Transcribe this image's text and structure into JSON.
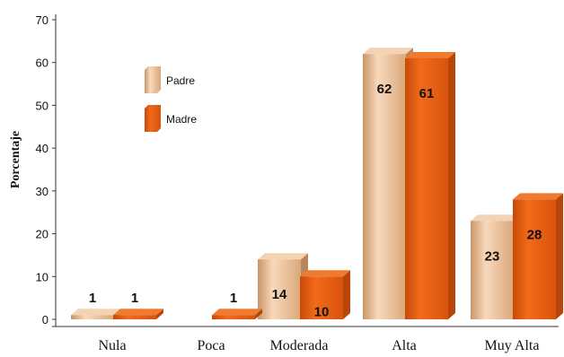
{
  "chart_data": {
    "type": "bar",
    "title": "",
    "xlabel": "",
    "ylabel": "Porcentaje",
    "ylim": [
      0,
      70
    ],
    "yticks": [
      0,
      10,
      20,
      30,
      40,
      50,
      60,
      70
    ],
    "categories": [
      "Nula",
      "Poca",
      "Moderada",
      "Alta",
      "Muy Alta"
    ],
    "series": [
      {
        "name": "Padre",
        "values": [
          1,
          null,
          14,
          62,
          23
        ],
        "color": "#E9B88C"
      },
      {
        "name": "Madre",
        "values": [
          1,
          1,
          10,
          61,
          28
        ],
        "color": "#E85A0C"
      }
    ],
    "legend_position": "top-left",
    "grid": false
  }
}
